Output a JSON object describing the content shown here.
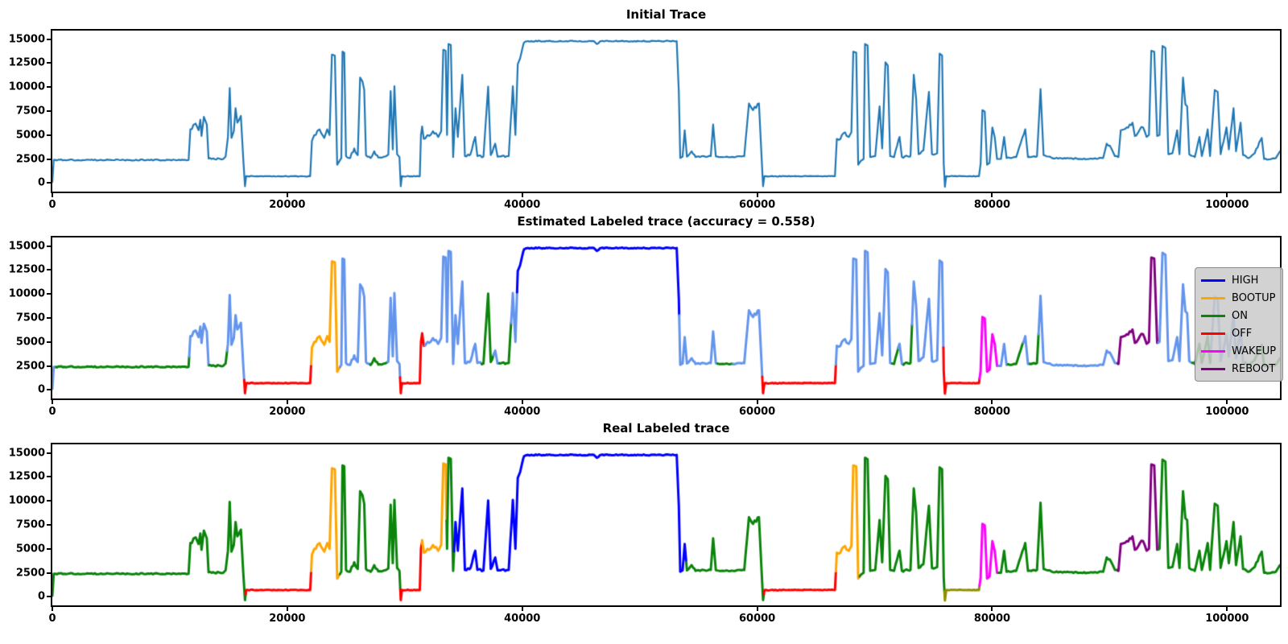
{
  "figure": {
    "background": "#ffffff"
  },
  "axes": {
    "x_ticks": [
      0,
      20000,
      40000,
      60000,
      80000,
      100000
    ],
    "y_ticks": [
      0,
      2500,
      5000,
      7500,
      10000,
      12500,
      15000
    ],
    "xlim": [
      0,
      104500
    ],
    "ylim": [
      -900,
      15900
    ]
  },
  "legend": {
    "items": [
      {
        "label": "HIGH",
        "color_key": "blue"
      },
      {
        "label": "BOOTUP",
        "color_key": "orange"
      },
      {
        "label": "ON",
        "color_key": "green"
      },
      {
        "label": "OFF",
        "color_key": "red"
      },
      {
        "label": "WAKEUP",
        "color_key": "magenta"
      },
      {
        "label": "REBOOT",
        "color_key": "purple"
      }
    ]
  },
  "chart_data": {
    "type": "line",
    "accuracy": 0.558,
    "palette": {
      "c0": "#1f77b4",
      "blue": "#0000ff",
      "lightblue": "#6495ed",
      "green": "#0a840a",
      "orange": "#ffa500",
      "red": "#ff0000",
      "magenta": "#ff00ff",
      "purple": "#800080",
      "olive": "#8f8f00"
    },
    "plots": [
      {
        "title": "Initial Trace",
        "line_width": 2.2,
        "segments": [
          [
            0,
            104500,
            "c0"
          ]
        ]
      },
      {
        "title": "Estimated Labeled trace (accuracy = 0.558)",
        "line_width": 3,
        "segments": [
          [
            0,
            320,
            "lightblue"
          ],
          [
            320,
            11650,
            "green"
          ],
          [
            11650,
            13350,
            "lightblue"
          ],
          [
            13350,
            14880,
            "green"
          ],
          [
            14880,
            16330,
            "lightblue"
          ],
          [
            16330,
            22030,
            "red"
          ],
          [
            22030,
            24500,
            "orange"
          ],
          [
            24500,
            27050,
            "lightblue"
          ],
          [
            27050,
            28550,
            "green"
          ],
          [
            28550,
            29600,
            "lightblue"
          ],
          [
            29600,
            31700,
            "red"
          ],
          [
            31700,
            36550,
            "lightblue"
          ],
          [
            36550,
            37550,
            "green"
          ],
          [
            37550,
            38050,
            "lightblue"
          ],
          [
            38050,
            39050,
            "green"
          ],
          [
            39050,
            39560,
            "lightblue"
          ],
          [
            39560,
            53360,
            "blue"
          ],
          [
            53360,
            56630,
            "lightblue"
          ],
          [
            56630,
            57950,
            "green"
          ],
          [
            57950,
            60430,
            "lightblue"
          ],
          [
            60430,
            66700,
            "red"
          ],
          [
            66700,
            71500,
            "lightblue"
          ],
          [
            71500,
            72000,
            "green"
          ],
          [
            72000,
            72460,
            "lightblue"
          ],
          [
            72460,
            73180,
            "green"
          ],
          [
            73180,
            75850,
            "lightblue"
          ],
          [
            75850,
            78930,
            "red"
          ],
          [
            78930,
            80520,
            "magenta"
          ],
          [
            80520,
            81350,
            "lightblue"
          ],
          [
            81350,
            82650,
            "green"
          ],
          [
            82650,
            83200,
            "lightblue"
          ],
          [
            83200,
            83950,
            "green"
          ],
          [
            83950,
            90680,
            "lightblue"
          ],
          [
            90680,
            94150,
            "purple"
          ],
          [
            94150,
            97050,
            "lightblue"
          ],
          [
            97050,
            98600,
            "green"
          ],
          [
            98600,
            101550,
            "lightblue"
          ],
          [
            101550,
            104500,
            "green"
          ]
        ]
      },
      {
        "title": "Real Labeled trace",
        "line_width": 3,
        "segments": [
          [
            0,
            16460,
            "green"
          ],
          [
            16460,
            22030,
            "red"
          ],
          [
            22030,
            24480,
            "orange"
          ],
          [
            24480,
            29620,
            "green"
          ],
          [
            29620,
            31440,
            "red"
          ],
          [
            31440,
            33560,
            "orange"
          ],
          [
            33560,
            34200,
            "green"
          ],
          [
            34200,
            53960,
            "blue"
          ],
          [
            53960,
            60570,
            "green"
          ],
          [
            60570,
            66700,
            "red"
          ],
          [
            66700,
            68720,
            "orange"
          ],
          [
            68720,
            75940,
            "green"
          ],
          [
            75940,
            78930,
            "olive"
          ],
          [
            78930,
            80520,
            "magenta"
          ],
          [
            80520,
            90680,
            "green"
          ],
          [
            90680,
            94150,
            "purple"
          ],
          [
            94150,
            104500,
            "green"
          ]
        ]
      }
    ],
    "trace_points": [
      [
        0,
        100,
        0
      ],
      [
        120,
        2400,
        60
      ],
      [
        11600,
        2400,
        60
      ],
      [
        11750,
        5600,
        200
      ],
      [
        12200,
        6200,
        250
      ],
      [
        12450,
        5500,
        120
      ],
      [
        12600,
        6600,
        0
      ],
      [
        12700,
        4900,
        120
      ],
      [
        12900,
        6900,
        150
      ],
      [
        13150,
        6100,
        100
      ],
      [
        13300,
        2550,
        80
      ],
      [
        14550,
        2500,
        80
      ],
      [
        14750,
        2750,
        60
      ],
      [
        14950,
        4800,
        0
      ],
      [
        15100,
        9900,
        0
      ],
      [
        15250,
        4700,
        100
      ],
      [
        15450,
        5400,
        120
      ],
      [
        15600,
        7800,
        0
      ],
      [
        15750,
        6300,
        150
      ],
      [
        16050,
        7000,
        120
      ],
      [
        16250,
        2600,
        0
      ],
      [
        16400,
        -350,
        0
      ],
      [
        16500,
        700,
        40
      ],
      [
        21950,
        700,
        40
      ],
      [
        22100,
        4400,
        120
      ],
      [
        22300,
        5000,
        250
      ],
      [
        22750,
        5600,
        250
      ],
      [
        23150,
        4700,
        150
      ],
      [
        23400,
        5600,
        120
      ],
      [
        23600,
        5000,
        80
      ],
      [
        23800,
        13400,
        60
      ],
      [
        24050,
        13300,
        0
      ],
      [
        24250,
        1900,
        0
      ],
      [
        24450,
        2300,
        100
      ],
      [
        24600,
        2600,
        0
      ],
      [
        24700,
        13700,
        0
      ],
      [
        24850,
        13600,
        60
      ],
      [
        25000,
        2800,
        100
      ],
      [
        25350,
        2600,
        150
      ],
      [
        25700,
        3600,
        200
      ],
      [
        26000,
        2900,
        100
      ],
      [
        26200,
        11000,
        0
      ],
      [
        26400,
        10600,
        100
      ],
      [
        26550,
        9700,
        0
      ],
      [
        26700,
        2900,
        100
      ],
      [
        27100,
        2600,
        100
      ],
      [
        27400,
        3300,
        130
      ],
      [
        27750,
        2650,
        80
      ],
      [
        28250,
        2750,
        80
      ],
      [
        28600,
        2950,
        80
      ],
      [
        28800,
        9600,
        0
      ],
      [
        28980,
        3500,
        80
      ],
      [
        29120,
        10100,
        0
      ],
      [
        29350,
        3000,
        100
      ],
      [
        29550,
        2700,
        0
      ],
      [
        29660,
        -350,
        0
      ],
      [
        29760,
        700,
        40
      ],
      [
        31280,
        700,
        40
      ],
      [
        31380,
        5000,
        0
      ],
      [
        31480,
        5900,
        80
      ],
      [
        31620,
        4600,
        120
      ],
      [
        31950,
        5000,
        220
      ],
      [
        32400,
        5400,
        220
      ],
      [
        32850,
        4800,
        150
      ],
      [
        33100,
        5400,
        80
      ],
      [
        33280,
        13900,
        60
      ],
      [
        33480,
        13800,
        0
      ],
      [
        33600,
        5000,
        0
      ],
      [
        33720,
        14500,
        0
      ],
      [
        33920,
        14400,
        60
      ],
      [
        34120,
        2700,
        0
      ],
      [
        34320,
        7800,
        0
      ],
      [
        34520,
        4800,
        130
      ],
      [
        34900,
        11300,
        0
      ],
      [
        35120,
        2800,
        100
      ],
      [
        35600,
        3000,
        130
      ],
      [
        36000,
        4800,
        0
      ],
      [
        36180,
        2800,
        100
      ],
      [
        36700,
        2750,
        120
      ],
      [
        37100,
        10050,
        0
      ],
      [
        37320,
        2900,
        120
      ],
      [
        37700,
        4100,
        0
      ],
      [
        37900,
        2750,
        120
      ],
      [
        38850,
        2800,
        100
      ],
      [
        39200,
        10100,
        0
      ],
      [
        39420,
        5000,
        80
      ],
      [
        39620,
        12400,
        0
      ],
      [
        39820,
        13000,
        180
      ],
      [
        40150,
        14650,
        60
      ],
      [
        40500,
        14800,
        55
      ],
      [
        46100,
        14800,
        55
      ],
      [
        46350,
        14500,
        60
      ],
      [
        46700,
        14800,
        55
      ],
      [
        53150,
        14800,
        55
      ],
      [
        53330,
        9500,
        0
      ],
      [
        53450,
        2600,
        0
      ],
      [
        53650,
        2750,
        80
      ],
      [
        53830,
        5500,
        0
      ],
      [
        54020,
        2750,
        80
      ],
      [
        54420,
        3300,
        100
      ],
      [
        54750,
        2700,
        70
      ],
      [
        56050,
        2800,
        70
      ],
      [
        56250,
        6100,
        0
      ],
      [
        56480,
        2780,
        70
      ],
      [
        56750,
        2700,
        60
      ],
      [
        57900,
        2720,
        60
      ],
      [
        58900,
        2780,
        70
      ],
      [
        59300,
        8300,
        120
      ],
      [
        59650,
        7600,
        280
      ],
      [
        60150,
        8300,
        0
      ],
      [
        60380,
        2600,
        0
      ],
      [
        60500,
        -350,
        0
      ],
      [
        60620,
        700,
        40
      ],
      [
        66620,
        700,
        40
      ],
      [
        66780,
        4600,
        0
      ],
      [
        66950,
        4500,
        180
      ],
      [
        67350,
        5200,
        220
      ],
      [
        67800,
        4800,
        150
      ],
      [
        68020,
        5300,
        60
      ],
      [
        68180,
        13700,
        50
      ],
      [
        68430,
        13600,
        0
      ],
      [
        68600,
        1900,
        0
      ],
      [
        68820,
        2300,
        100
      ],
      [
        69060,
        2500,
        0
      ],
      [
        69180,
        14500,
        0
      ],
      [
        69400,
        14350,
        60
      ],
      [
        69620,
        2700,
        0
      ],
      [
        70050,
        2800,
        100
      ],
      [
        70420,
        8000,
        0
      ],
      [
        70640,
        3600,
        100
      ],
      [
        70920,
        12600,
        0
      ],
      [
        71120,
        12250,
        80
      ],
      [
        71320,
        2800,
        0
      ],
      [
        71650,
        2700,
        100
      ],
      [
        72120,
        4800,
        0
      ],
      [
        72320,
        2700,
        100
      ],
      [
        73050,
        2800,
        100
      ],
      [
        73330,
        11300,
        0
      ],
      [
        73530,
        8800,
        80
      ],
      [
        73740,
        3000,
        100
      ],
      [
        74150,
        3400,
        140
      ],
      [
        74620,
        9500,
        0
      ],
      [
        74880,
        3000,
        100
      ],
      [
        75320,
        3100,
        100
      ],
      [
        75530,
        13500,
        0
      ],
      [
        75740,
        13300,
        60
      ],
      [
        75880,
        2000,
        0
      ],
      [
        75980,
        -400,
        0
      ],
      [
        76090,
        700,
        40
      ],
      [
        78880,
        700,
        40
      ],
      [
        79020,
        2000,
        0
      ],
      [
        79170,
        7600,
        0
      ],
      [
        79370,
        7450,
        70
      ],
      [
        79570,
        1900,
        0
      ],
      [
        79780,
        2100,
        100
      ],
      [
        80020,
        5800,
        0
      ],
      [
        80220,
        4800,
        80
      ],
      [
        80420,
        2500,
        0
      ],
      [
        80750,
        2500,
        70
      ],
      [
        81020,
        4800,
        0
      ],
      [
        81230,
        2600,
        70
      ],
      [
        82050,
        2700,
        90
      ],
      [
        82820,
        5600,
        0
      ],
      [
        83050,
        2700,
        70
      ],
      [
        83820,
        2800,
        70
      ],
      [
        84120,
        9800,
        0
      ],
      [
        84380,
        2900,
        70
      ],
      [
        85100,
        2600,
        55
      ],
      [
        88100,
        2500,
        55
      ],
      [
        89450,
        2600,
        70
      ],
      [
        89750,
        4100,
        130
      ],
      [
        90150,
        3600,
        130
      ],
      [
        90450,
        2800,
        70
      ],
      [
        90750,
        2700,
        0
      ],
      [
        90950,
        5500,
        220
      ],
      [
        91450,
        5800,
        260
      ],
      [
        91950,
        6300,
        0
      ],
      [
        92150,
        4900,
        180
      ],
      [
        92450,
        5300,
        220
      ],
      [
        92850,
        5800,
        180
      ],
      [
        93150,
        4800,
        80
      ],
      [
        93350,
        5000,
        0
      ],
      [
        93550,
        13800,
        0
      ],
      [
        93800,
        13700,
        60
      ],
      [
        94050,
        4900,
        0
      ],
      [
        94250,
        5000,
        0
      ],
      [
        94500,
        14300,
        0
      ],
      [
        94750,
        14100,
        60
      ],
      [
        95000,
        3000,
        0
      ],
      [
        95350,
        3100,
        100
      ],
      [
        95750,
        5500,
        0
      ],
      [
        95950,
        3000,
        100
      ],
      [
        96250,
        11000,
        0
      ],
      [
        96450,
        8200,
        0
      ],
      [
        96600,
        8000,
        80
      ],
      [
        96780,
        3000,
        90
      ],
      [
        97250,
        2700,
        70
      ],
      [
        97650,
        4800,
        0
      ],
      [
        97850,
        2800,
        70
      ],
      [
        98350,
        5600,
        0
      ],
      [
        98550,
        2800,
        70
      ],
      [
        98950,
        9700,
        0
      ],
      [
        99200,
        9500,
        60
      ],
      [
        99450,
        3000,
        90
      ],
      [
        99950,
        5800,
        0
      ],
      [
        100150,
        3500,
        90
      ],
      [
        100550,
        7800,
        0
      ],
      [
        100760,
        3300,
        90
      ],
      [
        101150,
        6300,
        0
      ],
      [
        101360,
        2900,
        90
      ],
      [
        101850,
        2600,
        70
      ],
      [
        102350,
        3100,
        120
      ],
      [
        102950,
        4700,
        0
      ],
      [
        103150,
        2500,
        70
      ],
      [
        103750,
        2500,
        55
      ],
      [
        104150,
        2600,
        0
      ],
      [
        104500,
        3300,
        0
      ]
    ]
  }
}
